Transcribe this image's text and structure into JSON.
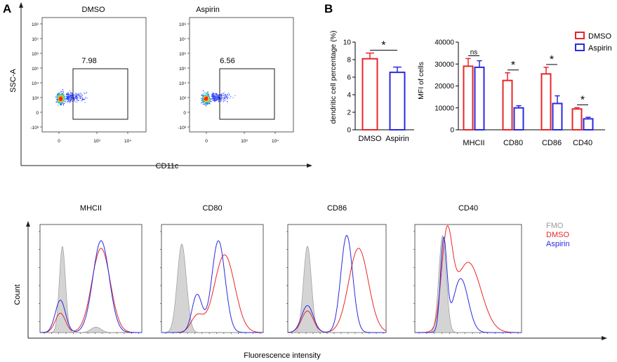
{
  "panel_labels": {
    "a": "A",
    "b": "B"
  },
  "colors": {
    "dmso": "#e8262a",
    "aspirin": "#2a2ae0",
    "fmo": "#9a9a9a",
    "fmo_fill": "#d4d4d4"
  },
  "flow": {
    "ylabel": "SSC-A",
    "xlabel": "CD11c",
    "y_ticks": [
      "10⁸",
      "10⁷",
      "10⁶",
      "10⁵",
      "10⁴",
      "10³",
      "0",
      "-10³"
    ],
    "x_ticks": [
      "0",
      "10³",
      "10⁴"
    ],
    "plots": [
      {
        "title": "DMSO",
        "gate_value": "7.98"
      },
      {
        "title": "Aspirin",
        "gate_value": "6.56"
      }
    ]
  },
  "histograms": {
    "ylabel": "Count",
    "xlabel": "Fluorescence intensity",
    "legend": [
      "FMO",
      "DMSO",
      "Aspirin"
    ],
    "titles": [
      "MHCII",
      "CD80",
      "CD86",
      "CD40"
    ]
  },
  "chart_data": [
    {
      "type": "bar",
      "title": "",
      "ylabel": "dendritic cell percentage (%)",
      "xlabel": "",
      "categories": [
        "DMSO",
        "Aspirin"
      ],
      "values": [
        8.1,
        6.55
      ],
      "errors": [
        0.65,
        0.6
      ],
      "ylim": [
        0,
        10
      ],
      "yticks": [
        "0",
        "2",
        "4",
        "6",
        "8",
        "10"
      ],
      "significance": [
        {
          "label": "*",
          "from": 0,
          "to": 1
        }
      ]
    },
    {
      "type": "bar",
      "title": "",
      "ylabel": "MFI of cells",
      "xlabel": "",
      "categories": [
        "MHCII",
        "CD80",
        "CD86",
        "CD40"
      ],
      "series": [
        {
          "name": "DMSO",
          "values": [
            29000,
            22500,
            25500,
            9500
          ],
          "errors": [
            3500,
            3500,
            3000,
            600
          ]
        },
        {
          "name": "Aspirin",
          "values": [
            28500,
            10000,
            12000,
            5000
          ],
          "errors": [
            3000,
            1000,
            3500,
            700
          ]
        }
      ],
      "ylim": [
        0,
        40000
      ],
      "yticks": [
        "0",
        "10000",
        "20000",
        "30000",
        "40000"
      ],
      "significance": [
        "ns",
        "*",
        "*",
        "*"
      ],
      "legend": [
        "DMSO",
        "Aspirin"
      ]
    }
  ]
}
